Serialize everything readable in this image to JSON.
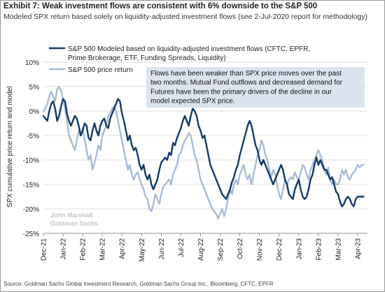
{
  "header": {
    "title": "Exhibit 7: Weak investment flows are consistent with 6% downside to the S&P 500",
    "subtitle": "Modeled SPX return based solely on liquidity-adjusted investment flows (see 2-Jul-2020 report for methodology)"
  },
  "footer": {
    "source": "Source: Goldman Sachs Global Investment Research, Goldman Sachs Group Inc., Bloomberg, CFTC, EPFR"
  },
  "watermark": {
    "line1": "John Marshall",
    "line2": "Goldman Sachs"
  },
  "chart_data": {
    "type": "line",
    "ylabel": "SPX cumulative price return and model",
    "ylim": [
      -25,
      10
    ],
    "yticks": [
      10,
      5,
      0,
      -5,
      -10,
      -15,
      -20,
      -25
    ],
    "ytick_labels": [
      "10%",
      "5%",
      "0%",
      "-5%",
      "-10%",
      "-15%",
      "-20%",
      "-25%"
    ],
    "xlim": [
      0,
      16.5
    ],
    "x_tick_labels": [
      "Dec-21",
      "Jan-22",
      "Feb-22",
      "Mar-22",
      "Apr-22",
      "May-22",
      "Jun-22",
      "Jul-22",
      "Aug-22",
      "Sep-22",
      "Oct-22",
      "Nov-22",
      "Dec-22",
      "Jan-23",
      "Feb-23",
      "Mar-23",
      "Apr-23"
    ],
    "x_units": "months since Dec-21",
    "grid": "horizontal",
    "legend_position": "top-left",
    "annotation": {
      "lines": [
        "Flows have been weaker than SPX price moves over the past",
        "two months. Mutual Fund outflows and decreased demand for",
        "Futures have been the primary drivers of the decline in our",
        "model expected SPX price."
      ],
      "background": "#dbe3ef"
    },
    "series": [
      {
        "name": "S&P 500 Modeled based on liquidity-adjusted investment flows (CFTC, EPFR,",
        "name_line2": "Prime Brokerage, ETF, Funding Spreads, Liquidity)",
        "color": "#143a66",
        "x": [
          0.0,
          0.1,
          0.2,
          0.3,
          0.4,
          0.5,
          0.6,
          0.7,
          0.8,
          0.9,
          1.0,
          1.1,
          1.2,
          1.3,
          1.4,
          1.5,
          1.6,
          1.7,
          1.8,
          1.9,
          2.0,
          2.1,
          2.2,
          2.3,
          2.4,
          2.5,
          2.6,
          2.7,
          2.8,
          2.9,
          3.0,
          3.1,
          3.2,
          3.3,
          3.4,
          3.5,
          3.6,
          3.7,
          3.8,
          3.9,
          4.0,
          4.1,
          4.2,
          4.3,
          4.4,
          4.5,
          4.6,
          4.7,
          4.8,
          4.9,
          5.0,
          5.1,
          5.2,
          5.3,
          5.4,
          5.5,
          5.6,
          5.7,
          5.8,
          5.9,
          6.0,
          6.1,
          6.2,
          6.3,
          6.4,
          6.5,
          6.6,
          6.7,
          6.8,
          6.9,
          7.0,
          7.1,
          7.2,
          7.3,
          7.4,
          7.5,
          7.6,
          7.7,
          7.8,
          7.9,
          8.0,
          8.1,
          8.2,
          8.3,
          8.4,
          8.5,
          8.6,
          8.7,
          8.8,
          8.9,
          9.0,
          9.1,
          9.2,
          9.3,
          9.4,
          9.5,
          9.6,
          9.7,
          9.8,
          9.9,
          10.0,
          10.1,
          10.2,
          10.3,
          10.4,
          10.5,
          10.6,
          10.7,
          10.8,
          10.9,
          11.0,
          11.1,
          11.2,
          11.3,
          11.4,
          11.5,
          11.6,
          11.7,
          11.8,
          11.9,
          12.0,
          12.1,
          12.2,
          12.3,
          12.4,
          12.5,
          12.6,
          12.7,
          12.8,
          12.9,
          13.0,
          13.1,
          13.2,
          13.3,
          13.4,
          13.5,
          13.6,
          13.7,
          13.8,
          13.9,
          14.0,
          14.1,
          14.2,
          14.3,
          14.4,
          14.5,
          14.6,
          14.7,
          14.8,
          14.9,
          15.0,
          15.1,
          15.2,
          15.3,
          15.4,
          15.5,
          15.6,
          15.7,
          15.8,
          15.9,
          16.0,
          16.1,
          16.2,
          16.3
        ],
        "values": [
          -1,
          -1.5,
          -2,
          0,
          1.5,
          2,
          0.5,
          -2,
          -1,
          1,
          2.5,
          2,
          -0.5,
          -2,
          -3,
          -2,
          -1,
          -1.5,
          -3,
          -5,
          -4,
          -2.5,
          -3,
          -5.5,
          -6,
          -4,
          -2.5,
          -4,
          -5,
          -3,
          -2,
          -1.5,
          -3,
          -3.5,
          -1.5,
          -0.5,
          0.5,
          1.5,
          2.5,
          2,
          -0.5,
          -2,
          -4,
          -6,
          -5,
          -7,
          -8,
          -7.5,
          -9,
          -11,
          -12,
          -11,
          -13,
          -14,
          -13,
          -15,
          -16,
          -15,
          -14,
          -12,
          -10.5,
          -10,
          -9.5,
          -10,
          -8.5,
          -9,
          -6.5,
          -7,
          -5.5,
          -4.5,
          -3.5,
          -2,
          -1,
          -2,
          -3,
          -1,
          0.5,
          0,
          -1,
          -3,
          -4,
          -5.5,
          -5,
          -7,
          -9,
          -11,
          -12,
          -13,
          -14,
          -15,
          -16,
          -17,
          -17.5,
          -18,
          -17,
          -16,
          -14.5,
          -13.5,
          -12,
          -11,
          -9,
          -7.5,
          -6,
          -4.5,
          -3,
          -2,
          -3,
          -5,
          -7,
          -8,
          -10,
          -11,
          -10,
          -11,
          -12,
          -13,
          -14,
          -15,
          -14,
          -13,
          -12,
          -11,
          -12,
          -14,
          -15,
          -17,
          -17.5,
          -18,
          -16,
          -15,
          -14,
          -16,
          -17.5,
          -18,
          -17.5,
          -16,
          -14,
          -13,
          -11,
          -9.5,
          -11,
          -10,
          -11,
          -12,
          -12,
          -13,
          -14,
          -13.5,
          -15,
          -16.5,
          -17,
          -18.5,
          -19.5,
          -19,
          -18,
          -17.5,
          -18,
          -19,
          -19.5,
          -18,
          -17.5,
          -17.5,
          -17.5,
          -17.5
        ]
      },
      {
        "name": "S&P 500 price return",
        "color": "#a8bcd6",
        "x": [
          0.0,
          0.1,
          0.2,
          0.3,
          0.4,
          0.5,
          0.6,
          0.7,
          0.8,
          0.9,
          1.0,
          1.1,
          1.2,
          1.3,
          1.4,
          1.5,
          1.6,
          1.7,
          1.8,
          1.9,
          2.0,
          2.1,
          2.2,
          2.3,
          2.4,
          2.5,
          2.6,
          2.7,
          2.8,
          2.9,
          3.0,
          3.1,
          3.2,
          3.3,
          3.4,
          3.5,
          3.6,
          3.7,
          3.8,
          3.9,
          4.0,
          4.1,
          4.2,
          4.3,
          4.4,
          4.5,
          4.6,
          4.7,
          4.8,
          4.9,
          5.0,
          5.1,
          5.2,
          5.3,
          5.4,
          5.5,
          5.6,
          5.7,
          5.8,
          5.9,
          6.0,
          6.1,
          6.2,
          6.3,
          6.4,
          6.5,
          6.6,
          6.7,
          6.8,
          6.9,
          7.0,
          7.1,
          7.2,
          7.3,
          7.4,
          7.5,
          7.6,
          7.7,
          7.8,
          7.9,
          8.0,
          8.1,
          8.2,
          8.3,
          8.4,
          8.5,
          8.6,
          8.7,
          8.8,
          8.9,
          9.0,
          9.1,
          9.2,
          9.3,
          9.4,
          9.5,
          9.6,
          9.7,
          9.8,
          9.9,
          10.0,
          10.1,
          10.2,
          10.3,
          10.4,
          10.5,
          10.6,
          10.7,
          10.8,
          10.9,
          11.0,
          11.1,
          11.2,
          11.3,
          11.4,
          11.5,
          11.6,
          11.7,
          11.8,
          11.9,
          12.0,
          12.1,
          12.2,
          12.3,
          12.4,
          12.5,
          12.6,
          12.7,
          12.8,
          12.9,
          13.0,
          13.1,
          13.2,
          13.3,
          13.4,
          13.5,
          13.6,
          13.7,
          13.8,
          13.9,
          14.0,
          14.1,
          14.2,
          14.3,
          14.4,
          14.5,
          14.6,
          14.7,
          14.8,
          14.9,
          15.0,
          15.1,
          15.2,
          15.3,
          15.4,
          15.5,
          15.6,
          15.7,
          15.8,
          15.9,
          16.0,
          16.1,
          16.2,
          16.3
        ],
        "values": [
          0,
          0.5,
          1.5,
          3,
          4,
          3,
          2,
          4.5,
          5,
          4,
          2.5,
          0.5,
          -2,
          -5,
          -6,
          -7,
          -8,
          -6,
          -4,
          -5,
          -3.5,
          -6,
          -8,
          -10,
          -9,
          -12,
          -10.5,
          -9,
          -7,
          -8,
          -5,
          -4,
          -3,
          -1,
          -0.5,
          0.5,
          1,
          0,
          -2,
          -4,
          -6,
          -8,
          -10,
          -12,
          -11,
          -13,
          -14,
          -13,
          -12.5,
          -14,
          -15,
          -16,
          -17.5,
          -18,
          -20,
          -20.5,
          -19,
          -17,
          -18,
          -19,
          -17,
          -15.5,
          -15,
          -14.5,
          -14,
          -15,
          -13,
          -12,
          -11,
          -9,
          -8.5,
          -7,
          -6,
          -5.5,
          -4.5,
          -5,
          -7,
          -9,
          -10,
          -12,
          -14,
          -15,
          -16,
          -17,
          -18,
          -19,
          -20,
          -20.5,
          -21,
          -22,
          -21,
          -20,
          -21.5,
          -20,
          -18,
          -16,
          -17,
          -15,
          -14,
          -15,
          -13,
          -12,
          -11,
          -13,
          -14,
          -13,
          -15,
          -13,
          -11,
          -9,
          -8,
          -6,
          -7,
          -9,
          -10,
          -12,
          -13.5,
          -12,
          -13,
          -15,
          -17,
          -18,
          -16,
          -14,
          -15,
          -14,
          -13.5,
          -14,
          -12.5,
          -13.5,
          -14,
          -12.5,
          -11,
          -11.5,
          -13,
          -14,
          -12,
          -11,
          -10,
          -9,
          -8,
          -9,
          -10,
          -12,
          -13,
          -11.5,
          -14,
          -15,
          -14,
          -15,
          -15,
          -14,
          -12,
          -13,
          -12,
          -13.5,
          -14,
          -13,
          -12.5,
          -12,
          -11,
          -11.5,
          -11,
          -11
        ]
      }
    ]
  }
}
